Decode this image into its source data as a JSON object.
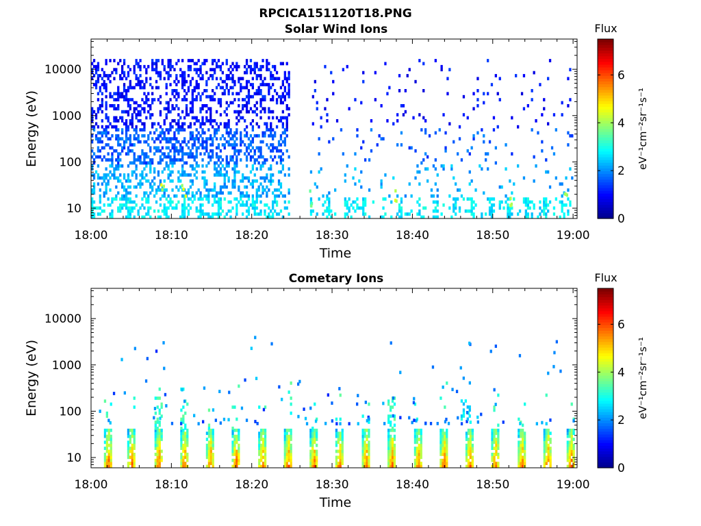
{
  "figure_title": "RPCICA151120T18.PNG",
  "colors": {
    "colormap": [
      "#00008f",
      "#0000ff",
      "#0080ff",
      "#00ffff",
      "#80ff80",
      "#ffff00",
      "#ff8000",
      "#ff0000",
      "#800000"
    ]
  },
  "chart_data": [
    {
      "type": "heatmap",
      "title": "Solar Wind Ions",
      "xlabel": "Time",
      "ylabel": "Energy (eV)",
      "x_ticks": [
        "18:00",
        "18:10",
        "18:20",
        "18:30",
        "18:40",
        "18:50",
        "19:00"
      ],
      "x_range_minutes": [
        0,
        60.5
      ],
      "y_scale": "log",
      "y_ticks": [
        "10",
        "100",
        "1000",
        "10000"
      ],
      "y_range": [
        6,
        45000
      ],
      "colorbar": {
        "label": "Flux",
        "units": "eV⁻¹cm⁻²sr⁻¹s⁻¹",
        "ticks": [
          "0",
          "2",
          "4",
          "6"
        ],
        "range": [
          0,
          7.5
        ]
      },
      "data_gap_minutes": [
        24.6,
        27.2
      ],
      "bands": [
        {
          "energy_eV": [
            500,
            15000
          ],
          "flux": 1.0,
          "description": "sparse high-energy ions"
        },
        {
          "energy_eV": [
            80,
            500
          ],
          "flux": 1.6
        },
        {
          "energy_eV": [
            15,
            80
          ],
          "flux": 2.2
        },
        {
          "energy_eV": [
            6,
            15
          ],
          "flux": 2.7
        }
      ],
      "hotspots": [
        {
          "time_min": 8.8,
          "energy_eV": 20,
          "flux": 4.8
        },
        {
          "time_min": 11.4,
          "energy_eV": 20,
          "flux": 4.6
        },
        {
          "time_min": 27.2,
          "energy_eV": 14,
          "flux": 4.0
        },
        {
          "time_min": 37.8,
          "energy_eV": 20,
          "flux": 4.8
        },
        {
          "time_min": 52.1,
          "energy_eV": 16,
          "flux": 4.5
        },
        {
          "time_min": 58.9,
          "energy_eV": 14,
          "flux": 4.3
        }
      ]
    },
    {
      "type": "heatmap",
      "title": "Cometary Ions",
      "xlabel": "Time",
      "ylabel": "Energy (eV)",
      "x_ticks": [
        "18:00",
        "18:10",
        "18:20",
        "18:30",
        "18:40",
        "18:50",
        "19:00"
      ],
      "x_range_minutes": [
        0,
        60.5
      ],
      "y_scale": "log",
      "y_ticks": [
        "10",
        "100",
        "1000",
        "10000"
      ],
      "y_range": [
        6,
        45000
      ],
      "colorbar": {
        "label": "Flux",
        "units": "eV⁻¹cm⁻²sr⁻¹s⁻¹",
        "ticks": [
          "0",
          "2",
          "4",
          "6"
        ],
        "range": [
          0,
          7.5
        ]
      },
      "bursts_minutes": [
        1.6,
        4.5,
        7.9,
        11.1,
        14.3,
        17.5,
        20.8,
        24.0,
        27.2,
        30.4,
        33.7,
        36.9,
        40.2,
        43.4,
        46.6,
        49.8,
        53.1,
        56.3,
        59.2
      ],
      "burst_peak_flux": 6.0,
      "burst_energy_eV": [
        6,
        40
      ],
      "scattered_energy_eV": [
        50,
        4000
      ],
      "scattered_flux": 1.2
    }
  ]
}
